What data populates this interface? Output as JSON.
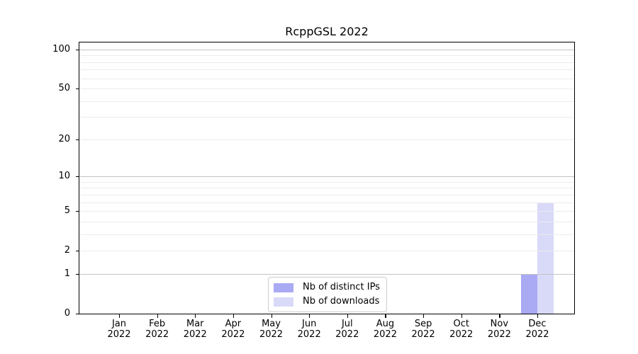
{
  "chart_data": {
    "type": "bar",
    "title": "RcppGSL 2022",
    "xlabel": "",
    "ylabel": "",
    "categories": [
      "Jan 2022",
      "Feb 2022",
      "Mar 2022",
      "Apr 2022",
      "May 2022",
      "Jun 2022",
      "Jul 2022",
      "Aug 2022",
      "Sep 2022",
      "Oct 2022",
      "Nov 2022",
      "Dec 2022"
    ],
    "series": [
      {
        "name": "Nb of distinct IPs",
        "color": "#a9a9f4",
        "values": [
          0,
          0,
          0,
          0,
          0,
          0,
          0,
          0,
          0,
          0,
          0,
          1
        ]
      },
      {
        "name": "Nb of downloads",
        "color": "#d9d9f8",
        "values": [
          0,
          0,
          0,
          0,
          0,
          0,
          0,
          0,
          0,
          0,
          0,
          6
        ]
      }
    ],
    "yscale": "log1p (symlog, linear below 1)",
    "ylim": [
      0,
      113
    ],
    "y_tick_values": [
      0,
      1,
      2,
      5,
      10,
      20,
      50,
      100
    ],
    "y_tick_labels": [
      "0",
      "1",
      "2",
      "5",
      "10",
      "20",
      "50",
      "100"
    ],
    "y_major_gridlines": [
      1,
      10,
      100
    ],
    "y_minor_gridlines": [
      2,
      3,
      4,
      5,
      6,
      7,
      8,
      9,
      20,
      30,
      40,
      50,
      60,
      70,
      80,
      90
    ],
    "grid": true,
    "legend_position": "inside plot, bottom center"
  },
  "colors": {
    "axis": "#000000",
    "grid_major": "#c4c4c4",
    "grid_minor": "#ececec",
    "background": "#ffffff",
    "legend_border": "#cccccc"
  }
}
